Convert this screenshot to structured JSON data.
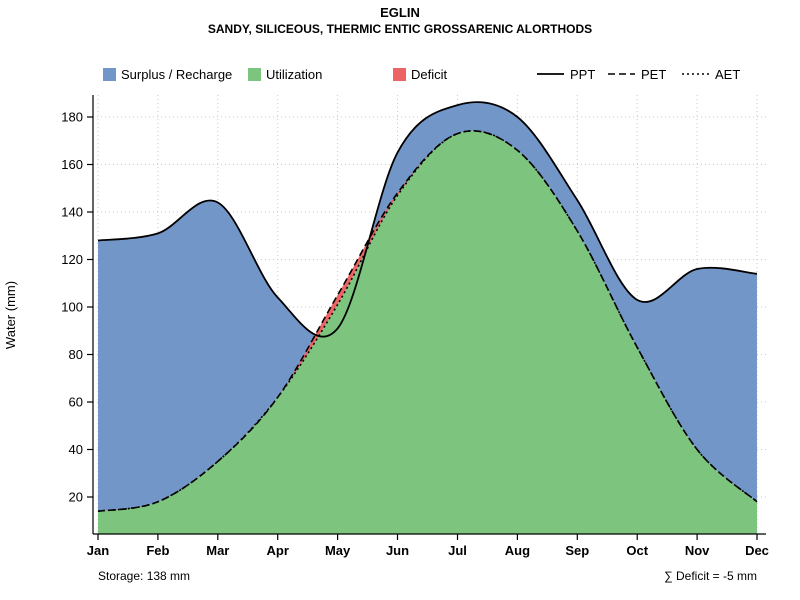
{
  "title": "EGLIN",
  "subtitle": "SANDY, SILICEOUS, THERMIC ENTIC GROSSARENIC ALORTHODS",
  "ylabel": "Water (mm)",
  "footer": {
    "storage": "Storage: 138 mm",
    "deficit": "∑ Deficit = -5 mm"
  },
  "legend": {
    "areas": [
      {
        "label": "Surplus / Recharge",
        "color": "#7396C8"
      },
      {
        "label": "Utilization",
        "color": "#7DC57E"
      },
      {
        "label": "Deficit",
        "color": "#EE6363"
      }
    ],
    "lines": [
      {
        "label": "PPT",
        "style": "solid"
      },
      {
        "label": "PET",
        "style": "dashed"
      },
      {
        "label": "AET",
        "style": "dotted"
      }
    ]
  },
  "chart_data": {
    "type": "area",
    "title": "EGLIN",
    "subtitle": "SANDY, SILICEOUS, THERMIC ENTIC GROSSARENIC ALORTHODS",
    "xlabel": "",
    "ylabel": "Water (mm)",
    "x": [
      "Jan",
      "Feb",
      "Mar",
      "Apr",
      "May",
      "Jun",
      "Jul",
      "Aug",
      "Sep",
      "Oct",
      "Nov",
      "Dec"
    ],
    "yticks": [
      20,
      40,
      60,
      80,
      100,
      120,
      140,
      160,
      180
    ],
    "ylim": [
      4,
      192
    ],
    "grid": "dotted",
    "legend_position": "top",
    "series": [
      {
        "name": "PPT",
        "style": "solid",
        "values": [
          128,
          131,
          144,
          104,
          91,
          165,
          185,
          180,
          145,
          103,
          116,
          114
        ]
      },
      {
        "name": "PET",
        "style": "dashed",
        "values": [
          14,
          18,
          35,
          62,
          105,
          148,
          173,
          166,
          132,
          83,
          40,
          18
        ]
      },
      {
        "name": "AET",
        "style": "dotted",
        "values": [
          14,
          18,
          35,
          62,
          101,
          147,
          173,
          166,
          132,
          83,
          40,
          18
        ]
      }
    ],
    "areas": [
      {
        "name": "Surplus / Recharge",
        "between": [
          "PPT",
          "baseline"
        ],
        "color": "#7396C8"
      },
      {
        "name": "Utilization",
        "between": [
          "AET",
          "baseline"
        ],
        "color": "#7DC57E"
      },
      {
        "name": "Deficit",
        "between": [
          "PET",
          "AET"
        ],
        "color": "#EE6363"
      }
    ],
    "annotations": {
      "storage_mm": 138,
      "deficit_sum_mm": -5
    }
  }
}
